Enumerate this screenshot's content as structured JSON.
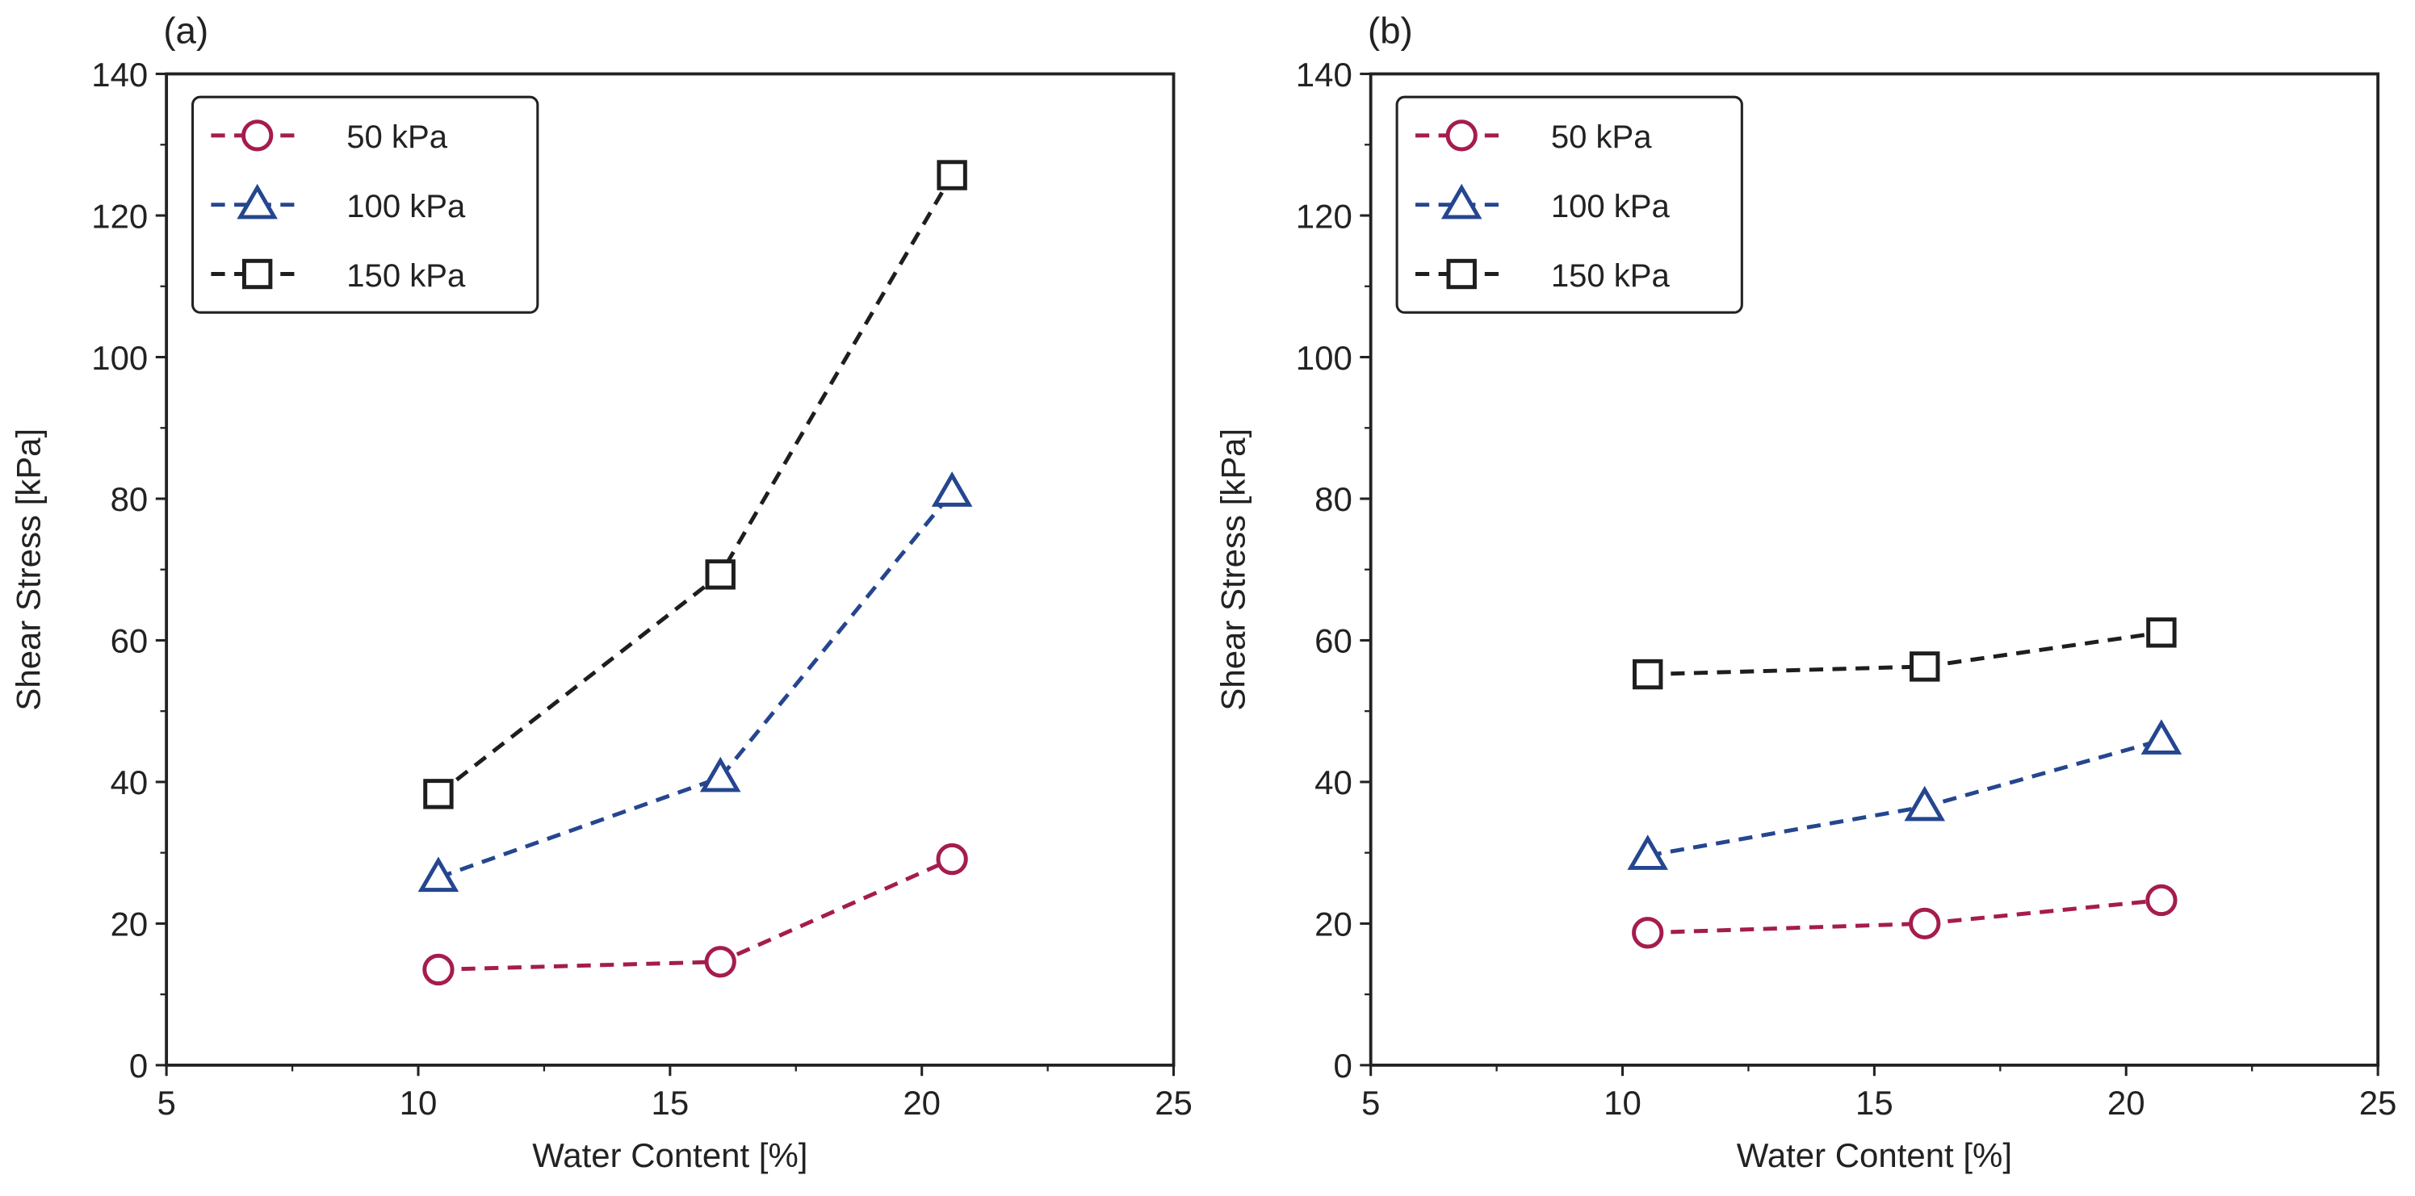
{
  "chart_data": [
    {
      "type": "line",
      "panel_label": "(a)",
      "xlabel": "Water Content [%]",
      "ylabel": "Shear Stress [kPa]",
      "xlim": [
        5,
        25
      ],
      "ylim": [
        0,
        140
      ],
      "xticks": [
        5,
        10,
        15,
        20,
        25
      ],
      "yticks": [
        0,
        20,
        40,
        60,
        80,
        100,
        120,
        140
      ],
      "grid": false,
      "legend_position": "top-left",
      "series": [
        {
          "name": "50 kPa",
          "color": "#a51c4e",
          "marker": "circle",
          "x": [
            10.4,
            16.0,
            20.6
          ],
          "y": [
            13.5,
            14.6,
            29.1
          ]
        },
        {
          "name": "100 kPa",
          "color": "#25468f",
          "marker": "triangle",
          "x": [
            10.4,
            16.0,
            20.6
          ],
          "y": [
            26.5,
            40.6,
            80.9
          ]
        },
        {
          "name": "150 kPa",
          "color": "#1e1e1e",
          "marker": "square",
          "x": [
            10.4,
            16.0,
            20.6
          ],
          "y": [
            38.3,
            69.3,
            125.7
          ]
        }
      ]
    },
    {
      "type": "line",
      "panel_label": "(b)",
      "xlabel": "Water Content [%]",
      "ylabel": "Shear Stress [kPa]",
      "xlim": [
        5,
        25
      ],
      "ylim": [
        0,
        140
      ],
      "xticks": [
        5,
        10,
        15,
        20,
        25
      ],
      "yticks": [
        0,
        20,
        40,
        60,
        80,
        100,
        120,
        140
      ],
      "grid": false,
      "legend_position": "top-left",
      "series": [
        {
          "name": "50 kPa",
          "color": "#a51c4e",
          "marker": "circle",
          "x": [
            10.5,
            16.0,
            20.7
          ],
          "y": [
            18.7,
            20.0,
            23.3
          ]
        },
        {
          "name": "100 kPa",
          "color": "#25468f",
          "marker": "triangle",
          "x": [
            10.5,
            16.0,
            20.7
          ],
          "y": [
            29.6,
            36.5,
            45.9
          ]
        },
        {
          "name": "150 kPa",
          "color": "#1e1e1e",
          "marker": "square",
          "x": [
            10.5,
            16.0,
            20.7
          ],
          "y": [
            55.2,
            56.3,
            61.1
          ]
        }
      ]
    }
  ]
}
